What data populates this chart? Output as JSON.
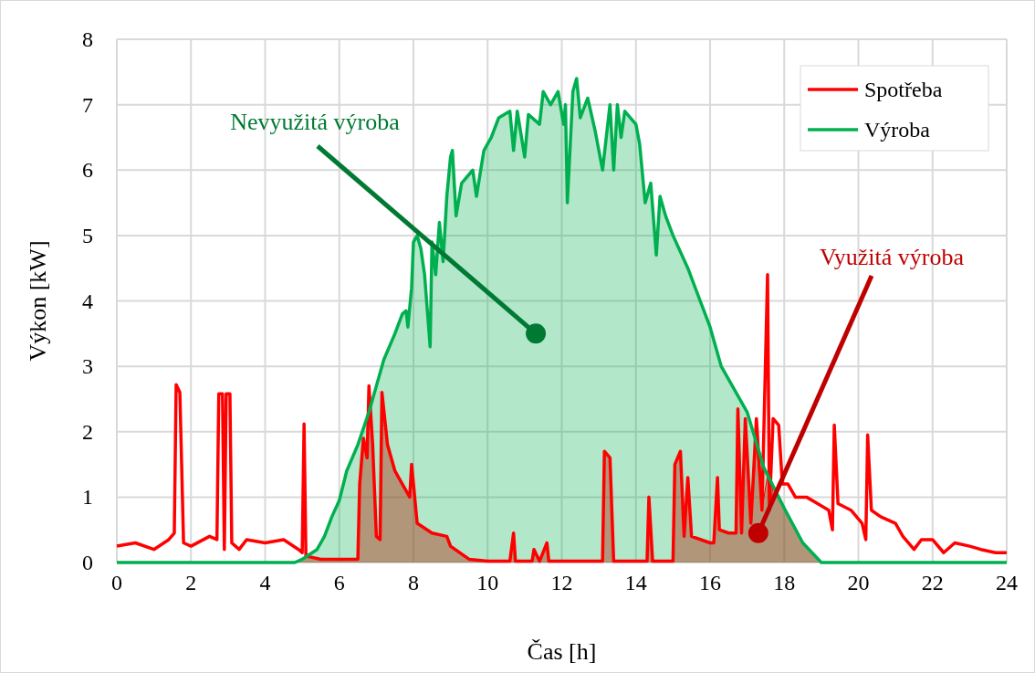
{
  "chart_data": {
    "type": "line",
    "xlabel": "Čas [h]",
    "ylabel": "Výkon [kW]",
    "xlim": [
      0,
      24
    ],
    "xticks": [
      0,
      2,
      4,
      6,
      8,
      10,
      12,
      14,
      16,
      18,
      20,
      22,
      24
    ],
    "ylim": [
      0,
      8
    ],
    "yticks": [
      0,
      1,
      2,
      3,
      4,
      5,
      6,
      7,
      8
    ],
    "grid": true,
    "legend": "top right",
    "marker": "none",
    "line_style": "solid",
    "annotations": [
      {
        "text": "Nevyužitá výroba",
        "x": 11.3,
        "y": 3.5
      },
      {
        "text": "Využitá výroba",
        "x": 17.3,
        "y": 0.45
      }
    ],
    "series": [
      {
        "type": "area",
        "color": "#ff0000",
        "x": [
          4.8,
          5.0,
          5.05,
          5.1,
          5.5,
          6.0,
          6.5,
          6.55,
          6.65,
          6.75,
          6.8,
          6.9,
          7.0,
          7.1,
          7.15,
          7.3,
          7.5,
          7.7,
          7.9,
          7.95,
          8.1,
          8.5,
          8.9,
          9.0,
          9.5,
          10.0,
          10.6,
          10.7,
          10.75,
          11.2,
          11.25,
          11.4,
          11.6,
          11.65,
          12.5,
          13.1,
          13.15,
          13.3,
          13.4,
          14.0,
          14.3,
          14.35,
          14.45,
          15.0,
          15.05,
          15.2,
          15.3,
          15.4,
          15.5,
          16.0,
          16.1,
          16.2,
          16.25,
          16.5,
          16.7,
          16.75,
          16.85,
          16.95,
          17.1,
          17.25,
          17.4,
          17.55,
          17.6,
          17.7,
          17.85,
          17.95,
          18.0,
          18.5,
          19.0
        ],
        "values": [
          0,
          0.05,
          0.06,
          0.09,
          0.05,
          0.05,
          0.05,
          1.2,
          1.9,
          1.6,
          2.3,
          1.8,
          0.4,
          0.35,
          2.6,
          1.8,
          1.4,
          1.2,
          1.0,
          1.5,
          0.6,
          0.45,
          0.4,
          0.25,
          0.05,
          0.02,
          0.02,
          0.45,
          0.02,
          0.02,
          0.2,
          0.02,
          0.3,
          0.02,
          0.02,
          0.02,
          1.7,
          1.6,
          0.02,
          0.02,
          0.02,
          1.0,
          0.02,
          0.02,
          1.5,
          1.7,
          0.4,
          1.3,
          0.4,
          0.3,
          0.3,
          1.3,
          0.5,
          0.45,
          0.45,
          2.35,
          0.45,
          2.2,
          0.6,
          1.83,
          0.8,
          1.34,
          0.8,
          1.17,
          1.0,
          0.88,
          0.83,
          0.3,
          0
        ]
      },
      {
        "name": "Spotřeba",
        "color": "#ff0000",
        "x": [
          0,
          0.5,
          1.0,
          1.4,
          1.55,
          1.6,
          1.7,
          1.8,
          2.0,
          2.5,
          2.7,
          2.75,
          2.85,
          2.9,
          2.95,
          3.05,
          3.1,
          3.3,
          3.5,
          4.0,
          4.5,
          4.9,
          5.0,
          5.05,
          5.1,
          5.5,
          6.0,
          6.5,
          6.55,
          6.65,
          6.75,
          6.8,
          6.9,
          7.0,
          7.1,
          7.15,
          7.3,
          7.5,
          7.7,
          7.9,
          7.95,
          8.1,
          8.5,
          8.9,
          9.0,
          9.5,
          10.0,
          10.6,
          10.7,
          10.75,
          11.2,
          11.25,
          11.4,
          11.6,
          11.65,
          12.5,
          13.1,
          13.15,
          13.3,
          13.4,
          14.0,
          14.3,
          14.35,
          14.45,
          15.0,
          15.05,
          15.2,
          15.3,
          15.4,
          15.5,
          16.0,
          16.1,
          16.2,
          16.25,
          16.5,
          16.7,
          16.75,
          16.85,
          16.95,
          17.1,
          17.25,
          17.4,
          17.55,
          17.6,
          17.7,
          17.85,
          17.95,
          18.1,
          18.3,
          18.6,
          18.9,
          19.2,
          19.3,
          19.35,
          19.45,
          19.8,
          20.1,
          20.2,
          20.25,
          20.35,
          20.6,
          21.0,
          21.2,
          21.5,
          21.7,
          22.0,
          22.3,
          22.6,
          23.0,
          23.3,
          23.7,
          24
        ],
        "values": [
          0.25,
          0.3,
          0.2,
          0.35,
          0.45,
          2.72,
          2.6,
          0.3,
          0.25,
          0.4,
          0.35,
          2.58,
          2.58,
          0.2,
          2.58,
          2.58,
          0.3,
          0.2,
          0.35,
          0.3,
          0.35,
          0.2,
          0.15,
          2.12,
          0.1,
          0.05,
          0.05,
          0.05,
          1.2,
          1.9,
          1.6,
          2.7,
          1.8,
          0.4,
          0.35,
          2.6,
          1.8,
          1.4,
          1.2,
          1.0,
          1.5,
          0.6,
          0.45,
          0.4,
          0.25,
          0.05,
          0.02,
          0.02,
          0.45,
          0.02,
          0.02,
          0.2,
          0.02,
          0.3,
          0.02,
          0.02,
          0.02,
          1.7,
          1.6,
          0.02,
          0.02,
          0.02,
          1.0,
          0.02,
          0.02,
          1.5,
          1.7,
          0.4,
          1.3,
          0.4,
          0.3,
          0.3,
          1.3,
          0.5,
          0.45,
          0.45,
          2.35,
          0.45,
          2.2,
          0.6,
          2.2,
          0.8,
          4.4,
          0.8,
          2.2,
          2.1,
          1.2,
          1.2,
          1.0,
          1.0,
          0.9,
          0.8,
          0.5,
          2.1,
          0.9,
          0.8,
          0.6,
          0.35,
          1.95,
          0.8,
          0.7,
          0.6,
          0.4,
          0.2,
          0.35,
          0.35,
          0.15,
          0.3,
          0.25,
          0.2,
          0.15,
          0.15
        ]
      },
      {
        "name": "Výroba",
        "type": "area",
        "color": "#00b050",
        "x": [
          0,
          4.8,
          5.0,
          5.4,
          5.6,
          5.8,
          6.0,
          6.2,
          6.5,
          6.8,
          7.0,
          7.2,
          7.5,
          7.7,
          7.8,
          7.85,
          7.95,
          8.0,
          8.1,
          8.2,
          8.3,
          8.45,
          8.5,
          8.6,
          8.7,
          8.8,
          8.9,
          9.0,
          9.05,
          9.15,
          9.3,
          9.6,
          9.7,
          9.9,
          10.1,
          10.3,
          10.6,
          10.7,
          10.8,
          11.0,
          11.1,
          11.4,
          11.5,
          11.7,
          11.9,
          12.05,
          12.1,
          12.15,
          12.3,
          12.4,
          12.5,
          12.7,
          12.9,
          13.1,
          13.3,
          13.4,
          13.5,
          13.6,
          13.7,
          14.0,
          14.1,
          14.25,
          14.4,
          14.55,
          14.65,
          14.8,
          15.0,
          15.4,
          15.8,
          16.0,
          16.3,
          16.6,
          17.0,
          17.45,
          18.0,
          18.5,
          19.0,
          24
        ],
        "values": [
          0,
          0,
          0.05,
          0.2,
          0.4,
          0.7,
          0.95,
          1.4,
          1.8,
          2.3,
          2.7,
          3.1,
          3.5,
          3.8,
          3.85,
          3.6,
          4.2,
          4.9,
          5.0,
          4.8,
          4.4,
          3.3,
          4.9,
          4.4,
          5.2,
          4.6,
          5.6,
          6.2,
          6.3,
          5.3,
          5.8,
          6.0,
          5.6,
          6.3,
          6.5,
          6.8,
          6.9,
          6.3,
          6.9,
          6.2,
          6.85,
          6.7,
          7.2,
          7.0,
          7.2,
          6.7,
          7.0,
          5.5,
          7.2,
          7.4,
          6.8,
          7.1,
          6.6,
          6.0,
          7.0,
          6.0,
          7.0,
          6.5,
          6.9,
          6.7,
          6.4,
          5.5,
          5.8,
          4.7,
          5.6,
          5.3,
          5.0,
          4.5,
          3.9,
          3.6,
          3.0,
          2.7,
          2.3,
          1.45,
          0.83,
          0.3,
          0,
          0
        ]
      }
    ]
  }
}
